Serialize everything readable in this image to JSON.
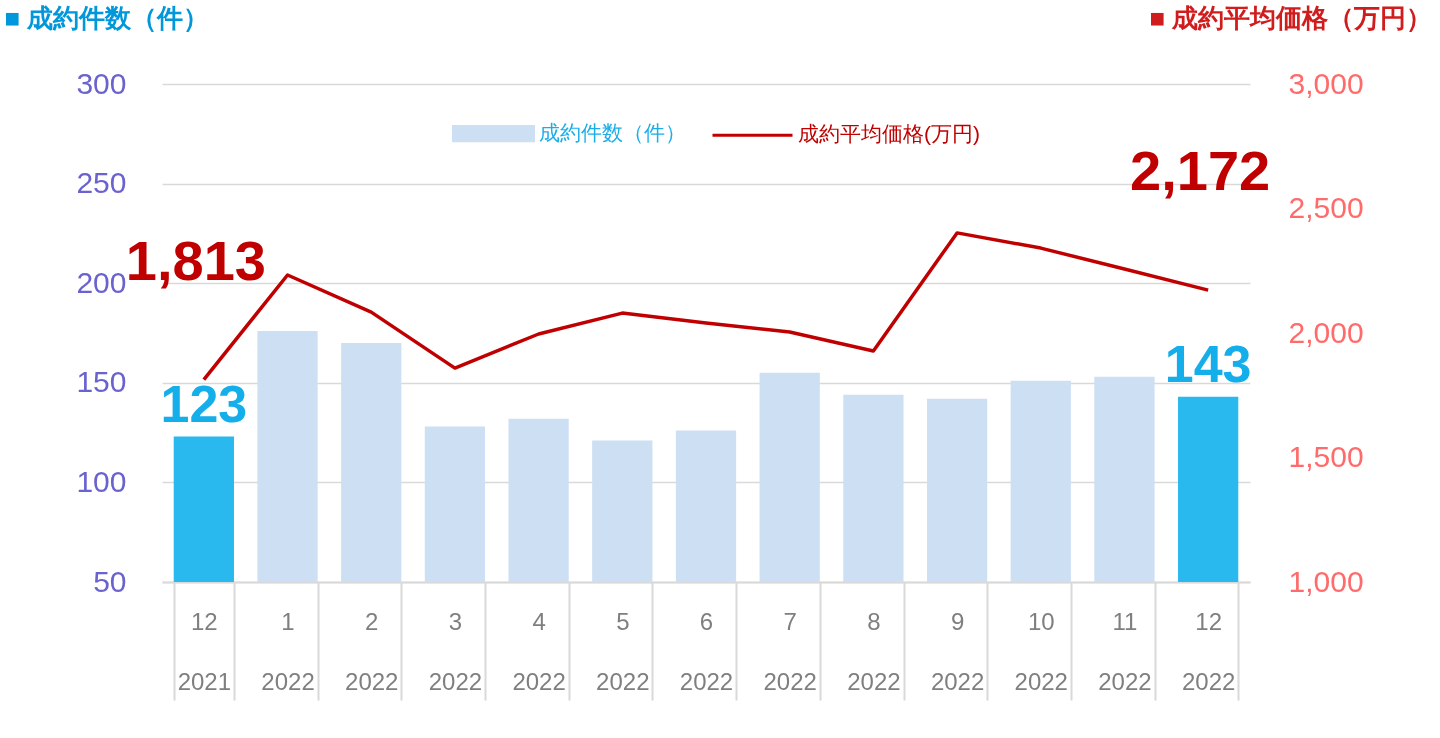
{
  "chart_data": {
    "type": "bar",
    "ylabel": "■ 成約件数（件）",
    "y2label": "■ 成約平均価格（万円）",
    "categories": [
      "12\n2021",
      "1\n2022",
      "2\n2022",
      "3\n2022",
      "4\n2022",
      "5\n2022",
      "6\n2022",
      "7\n2022",
      "8\n2022",
      "9\n2022",
      "10\n2022",
      "11\n2022",
      "12\n2022"
    ],
    "series": [
      {
        "name": "成約件数（件）",
        "type": "bar",
        "color": "#cddff3",
        "colors": [
          "#29b9ee",
          "#cddff3",
          "#cddff3",
          "#cddff3",
          "#cddff3",
          "#cddff3",
          "#cddff3",
          "#cddff3",
          "#cddff3",
          "#cddff3",
          "#cddff3",
          "#cddff3",
          "#29b9ee"
        ],
        "values": [
          123,
          176,
          170,
          128,
          132,
          121,
          126,
          155,
          144,
          142,
          151,
          153,
          143
        ],
        "value_labels": [
          "123",
          null,
          null,
          null,
          null,
          null,
          null,
          null,
          null,
          null,
          null,
          null,
          "143"
        ]
      },
      {
        "name": "成約平均価格(万円)",
        "type": "line",
        "axis": "y2",
        "color": "#c00000",
        "values": [
          1813,
          2233,
          2084,
          1859,
          1996,
          2080,
          2040,
          2004,
          1928,
          2402,
          2341,
          2257,
          2172
        ],
        "value_labels": [
          "1,813",
          null,
          null,
          null,
          null,
          null,
          null,
          null,
          null,
          null,
          null,
          null,
          "2,172"
        ]
      }
    ],
    "ylim": [
      50,
      300
    ],
    "yticks": [
      50,
      100,
      150,
      200,
      250,
      300
    ],
    "y2lim": [
      1000,
      3000
    ],
    "y2ticks": [
      {
        "value": 1000,
        "label": "1,000"
      },
      {
        "value": 1500,
        "label": "1,500"
      },
      {
        "value": 2000,
        "label": "2,000"
      },
      {
        "value": 2500,
        "label": "2,500"
      },
      {
        "value": 3000,
        "label": "3,000"
      }
    ],
    "grid": "y",
    "legend": "top"
  }
}
